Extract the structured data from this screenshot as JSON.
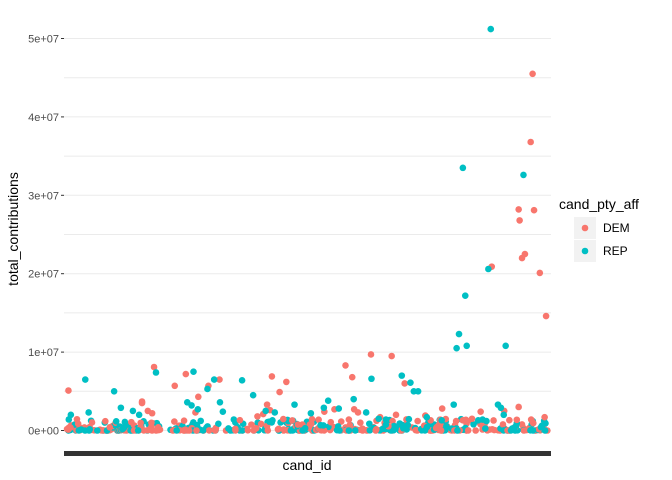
{
  "chart_data": {
    "type": "scatter",
    "xlabel": "cand_id",
    "ylabel": "total_contributions",
    "ylim": [
      -3000000,
      53500000
    ],
    "yticks": [
      0,
      10000000,
      20000000,
      30000000,
      40000000,
      50000000
    ],
    "ytick_labels": [
      "0e+00",
      "1e+07",
      "2e+07",
      "3e+07",
      "4e+07",
      "5e+07"
    ],
    "grid": true,
    "x_scale": "categorical (candidate ids, tick labels not shown)",
    "legend": {
      "title": "cand_pty_aff",
      "position": "right",
      "entries": [
        {
          "label": "DEM",
          "color": "#F8766D"
        },
        {
          "label": "REP",
          "color": "#00BFC4"
        }
      ]
    },
    "note": "x positions are ordinal positions in the candidate ordering, 0–100; only prominent points are listed, hundreds of near-zero points form a baseline",
    "series": [
      {
        "name": "DEM",
        "color": "#F8766D",
        "points": [
          [
            0.3,
            5100000
          ],
          [
            15.6,
            3700000
          ],
          [
            16.8,
            2500000
          ],
          [
            15.6,
            3500000
          ],
          [
            17.7,
            2200000
          ],
          [
            18.1,
            8100000
          ],
          [
            22.4,
            5700000
          ],
          [
            24.7,
            7200000
          ],
          [
            26.7,
            2300000
          ],
          [
            27.3,
            4300000
          ],
          [
            29.4,
            5700000
          ],
          [
            31.7,
            6500000
          ],
          [
            39.6,
            1800000
          ],
          [
            40.8,
            2100000
          ],
          [
            41.6,
            3300000
          ],
          [
            42.2,
            2600000
          ],
          [
            42.6,
            6900000
          ],
          [
            44.2,
            4900000
          ],
          [
            45.6,
            6200000
          ],
          [
            53.5,
            2400000
          ],
          [
            55.6,
            2700000
          ],
          [
            57.9,
            8300000
          ],
          [
            58.6,
            1400000
          ],
          [
            59.3,
            6800000
          ],
          [
            59.7,
            2700000
          ],
          [
            60.5,
            2300000
          ],
          [
            63.2,
            9700000
          ],
          [
            65.1,
            1700000
          ],
          [
            67.5,
            9500000
          ],
          [
            68.4,
            2000000
          ],
          [
            70.2,
            6000000
          ],
          [
            72.9,
            1200000
          ],
          [
            74.5,
            1900000
          ],
          [
            75.6,
            1300000
          ],
          [
            78.0,
            2800000
          ],
          [
            80.9,
            1200000
          ],
          [
            82.3,
            1300000
          ],
          [
            83.0,
            1300000
          ],
          [
            84.2,
            1500000
          ],
          [
            86.0,
            2400000
          ],
          [
            88.3,
            20900000
          ],
          [
            93.9,
            28200000
          ],
          [
            94.1,
            26800000
          ],
          [
            94.6,
            22000000
          ],
          [
            95.2,
            22500000
          ],
          [
            96.8,
            45500000
          ],
          [
            96.4,
            36800000
          ],
          [
            97.1,
            28100000
          ],
          [
            98.3,
            20100000
          ],
          [
            99.6,
            14600000
          ],
          [
            93.9,
            3000000
          ],
          [
            90.9,
            2500000
          ],
          [
            96.5,
            1400000
          ],
          [
            99.3,
            1700000
          ]
        ]
      },
      {
        "name": "REP",
        "color": "#00BFC4",
        "points": [
          [
            0.8,
            2000000
          ],
          [
            3.8,
            6500000
          ],
          [
            4.5,
            2300000
          ],
          [
            9.8,
            5000000
          ],
          [
            11.2,
            2900000
          ],
          [
            13.7,
            2500000
          ],
          [
            15.0,
            2000000
          ],
          [
            18.5,
            7400000
          ],
          [
            25.0,
            3600000
          ],
          [
            26.3,
            7500000
          ],
          [
            25.9,
            3200000
          ],
          [
            27.2,
            2700000
          ],
          [
            29.2,
            5300000
          ],
          [
            30.6,
            6500000
          ],
          [
            31.8,
            3600000
          ],
          [
            32.4,
            2400000
          ],
          [
            36.4,
            6400000
          ],
          [
            38.7,
            4500000
          ],
          [
            41.3,
            2500000
          ],
          [
            43.2,
            2300000
          ],
          [
            47.3,
            3300000
          ],
          [
            50.7,
            2200000
          ],
          [
            53.4,
            2900000
          ],
          [
            54.3,
            3800000
          ],
          [
            56.5,
            2800000
          ],
          [
            59.6,
            4000000
          ],
          [
            62.2,
            2300000
          ],
          [
            63.3,
            6600000
          ],
          [
            64.8,
            1500000
          ],
          [
            69.6,
            7000000
          ],
          [
            71.4,
            6100000
          ],
          [
            72.1,
            5000000
          ],
          [
            73.0,
            5000000
          ],
          [
            74.8,
            1700000
          ],
          [
            80.4,
            3300000
          ],
          [
            81.5,
            12300000
          ],
          [
            82.3,
            33500000
          ],
          [
            82.8,
            17200000
          ],
          [
            83.1,
            10800000
          ],
          [
            81.0,
            10500000
          ],
          [
            85.5,
            1300000
          ],
          [
            86.4,
            1400000
          ],
          [
            87.2,
            1200000
          ],
          [
            87.6,
            20600000
          ],
          [
            88.1,
            51200000
          ],
          [
            89.6,
            3300000
          ],
          [
            90.2,
            2900000
          ],
          [
            91.2,
            10800000
          ],
          [
            94.9,
            32600000
          ],
          [
            90.8,
            2000000
          ],
          [
            77.9,
            1300000
          ],
          [
            66.3,
            1400000
          ]
        ]
      }
    ]
  }
}
